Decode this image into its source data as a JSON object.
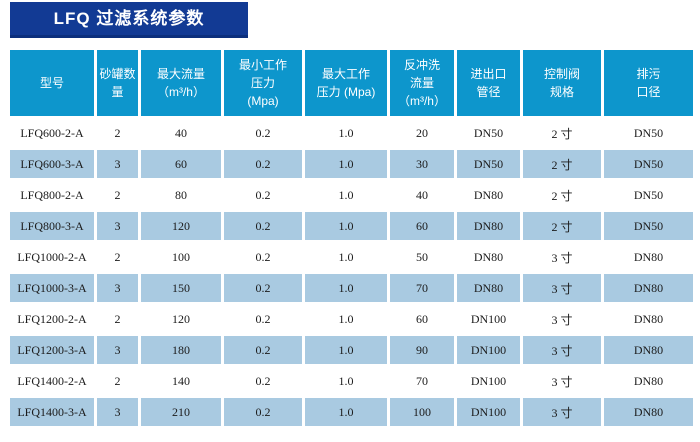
{
  "page": {
    "title": "LFQ 过滤系统参数"
  },
  "colors": {
    "title_bg": "#123a94",
    "title_border": "#0c2f7c",
    "header_bg": "#0d96cc",
    "row_bg": "#ffffff",
    "row_alt_bg": "#a9cae1",
    "text_white": "#ffffff",
    "text_dark": "#1b1b1b"
  },
  "table": {
    "columns": [
      {
        "id": "model",
        "label_lines": [
          "型号"
        ]
      },
      {
        "id": "tank-count",
        "label_lines": [
          "砂罐数",
          "量"
        ]
      },
      {
        "id": "max-flow",
        "label_lines": [
          "最大流量",
          "（m³/h）"
        ]
      },
      {
        "id": "min-work-pressure",
        "label_lines": [
          "最小工作",
          "压力",
          "(Mpa)"
        ]
      },
      {
        "id": "max-work-pressure",
        "label_lines": [
          "最大工作",
          "压力 (Mpa)"
        ]
      },
      {
        "id": "backwash-flow",
        "label_lines": [
          "反冲洗",
          "流量",
          "（m³/h）"
        ]
      },
      {
        "id": "inlet-outlet-dia",
        "label_lines": [
          "进出口",
          "管径"
        ]
      },
      {
        "id": "control-valve",
        "label_lines": [
          "控制阀",
          "规格"
        ]
      },
      {
        "id": "drain-dia",
        "label_lines": [
          "排污",
          "口径"
        ]
      }
    ],
    "rows": [
      [
        "LFQ600-2-A",
        "2",
        "40",
        "0.2",
        "1.0",
        "20",
        "DN50",
        "2 寸",
        "DN50"
      ],
      [
        "LFQ600-3-A",
        "3",
        "60",
        "0.2",
        "1.0",
        "30",
        "DN50",
        "2 寸",
        "DN50"
      ],
      [
        "LFQ800-2-A",
        "2",
        "80",
        "0.2",
        "1.0",
        "40",
        "DN80",
        "2 寸",
        "DN50"
      ],
      [
        "LFQ800-3-A",
        "3",
        "120",
        "0.2",
        "1.0",
        "60",
        "DN80",
        "2 寸",
        "DN50"
      ],
      [
        "LFQ1000-2-A",
        "2",
        "100",
        "0.2",
        "1.0",
        "50",
        "DN80",
        "3 寸",
        "DN80"
      ],
      [
        "LFQ1000-3-A",
        "3",
        "150",
        "0.2",
        "1.0",
        "70",
        "DN80",
        "3 寸",
        "DN80"
      ],
      [
        "LFQ1200-2-A",
        "2",
        "120",
        "0.2",
        "1.0",
        "60",
        "DN100",
        "3 寸",
        "DN80"
      ],
      [
        "LFQ1200-3-A",
        "3",
        "180",
        "0.2",
        "1.0",
        "90",
        "DN100",
        "3 寸",
        "DN80"
      ],
      [
        "LFQ1400-2-A",
        "2",
        "140",
        "0.2",
        "1.0",
        "70",
        "DN100",
        "3 寸",
        "DN80"
      ],
      [
        "LFQ1400-3-A",
        "3",
        "210",
        "0.2",
        "1.0",
        "100",
        "DN100",
        "3 寸",
        "DN80"
      ]
    ]
  }
}
